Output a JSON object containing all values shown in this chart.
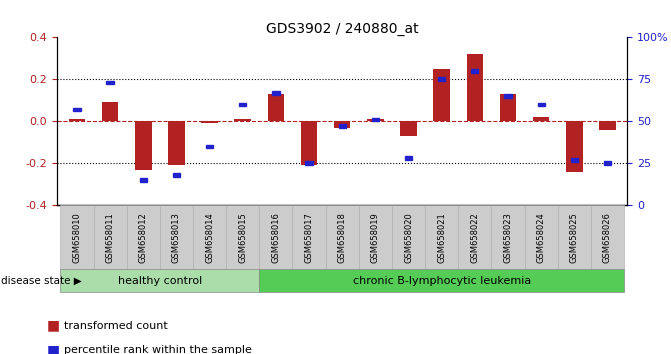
{
  "title": "GDS3902 / 240880_at",
  "samples": [
    "GSM658010",
    "GSM658011",
    "GSM658012",
    "GSM658013",
    "GSM658014",
    "GSM658015",
    "GSM658016",
    "GSM658017",
    "GSM658018",
    "GSM658019",
    "GSM658020",
    "GSM658021",
    "GSM658022",
    "GSM658023",
    "GSM658024",
    "GSM658025",
    "GSM658026"
  ],
  "red_values": [
    0.01,
    0.09,
    -0.23,
    -0.21,
    -0.01,
    0.01,
    0.13,
    -0.21,
    -0.03,
    0.01,
    -0.07,
    0.25,
    0.32,
    0.13,
    0.02,
    -0.24,
    -0.04
  ],
  "blue_values": [
    57,
    73,
    15,
    18,
    35,
    60,
    67,
    25,
    47,
    51,
    28,
    75,
    80,
    65,
    60,
    27,
    25
  ],
  "healthy_count": 6,
  "ylim": [
    -0.4,
    0.4
  ],
  "yticks_left": [
    -0.4,
    -0.2,
    0.0,
    0.2,
    0.4
  ],
  "yticks_right": [
    0,
    25,
    50,
    75,
    100
  ],
  "red_color": "#b22222",
  "blue_color": "#2222cc",
  "healthy_color": "#aaddaa",
  "leukemia_color": "#55cc55",
  "bar_width": 0.5,
  "label_red": "transformed count",
  "label_blue": "percentile rank within the sample",
  "disease_state_label": "disease state",
  "healthy_label": "healthy control",
  "leukemia_label": "chronic B-lymphocytic leukemia",
  "tick_bg_color": "#cccccc",
  "tick_border_color": "#aaaaaa"
}
